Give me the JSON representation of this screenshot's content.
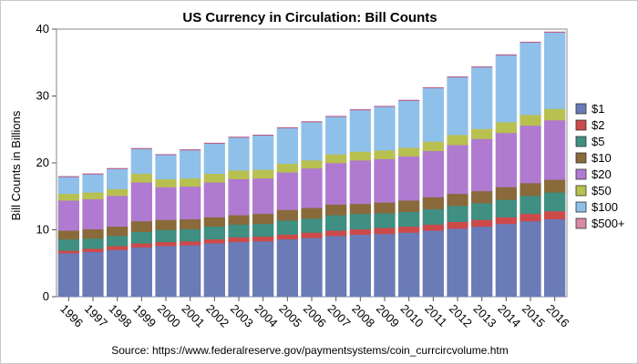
{
  "chart_data": {
    "type": "bar",
    "stacked": true,
    "title": "US Currency in Circulation: Bill Counts",
    "xlabel": "",
    "ylabel": "Bill Counts in Billions",
    "ylim": [
      0,
      40
    ],
    "yticks": [
      0,
      10,
      20,
      30,
      40
    ],
    "legend": "right",
    "grid": false,
    "source": "Source: https://www.federalreserve.gov/paymentsystems/coin_currcircvolume.htm",
    "categories": [
      "1996",
      "1997",
      "1998",
      "1999",
      "2000",
      "2001",
      "2002",
      "2003",
      "2004",
      "2005",
      "2006",
      "2007",
      "2008",
      "2009",
      "2010",
      "2011",
      "2012",
      "2013",
      "2014",
      "2015",
      "2016"
    ],
    "series": [
      {
        "name": "$1",
        "color": "#6a7bb8",
        "values": [
          6.5,
          6.7,
          7.0,
          7.4,
          7.6,
          7.7,
          8.0,
          8.2,
          8.3,
          8.6,
          8.8,
          9.1,
          9.3,
          9.4,
          9.6,
          9.9,
          10.2,
          10.5,
          10.9,
          11.3,
          11.6
        ]
      },
      {
        "name": "$2",
        "color": "#cc4a4a",
        "values": [
          0.4,
          0.5,
          0.6,
          0.6,
          0.6,
          0.6,
          0.6,
          0.7,
          0.7,
          0.7,
          0.8,
          0.8,
          0.8,
          0.9,
          0.9,
          0.9,
          1.0,
          1.0,
          1.0,
          1.1,
          1.2
        ]
      },
      {
        "name": "$5",
        "color": "#3f8f82",
        "values": [
          1.7,
          1.5,
          1.5,
          1.7,
          1.8,
          1.8,
          1.9,
          1.9,
          1.9,
          2.1,
          2.1,
          2.3,
          2.3,
          2.2,
          2.2,
          2.3,
          2.4,
          2.5,
          2.6,
          2.7,
          2.8
        ]
      },
      {
        "name": "$10",
        "color": "#8a6a3a",
        "values": [
          1.3,
          1.4,
          1.4,
          1.6,
          1.5,
          1.5,
          1.4,
          1.4,
          1.5,
          1.6,
          1.6,
          1.6,
          1.5,
          1.6,
          1.7,
          1.8,
          1.8,
          1.8,
          1.9,
          1.9,
          1.9
        ]
      },
      {
        "name": "$20",
        "color": "#b07ad0",
        "values": [
          4.5,
          4.5,
          4.6,
          5.8,
          4.9,
          4.9,
          5.2,
          5.4,
          5.3,
          5.6,
          5.9,
          6.2,
          6.5,
          6.5,
          6.6,
          6.9,
          7.3,
          7.8,
          8.1,
          8.6,
          8.9
        ]
      },
      {
        "name": "$50",
        "color": "#b8c050",
        "values": [
          1.0,
          1.0,
          1.0,
          1.3,
          1.2,
          1.2,
          1.3,
          1.3,
          1.3,
          1.3,
          1.2,
          1.3,
          1.3,
          1.3,
          1.3,
          1.4,
          1.5,
          1.5,
          1.6,
          1.6,
          1.7
        ]
      },
      {
        "name": "$100",
        "color": "#8fc0ea",
        "values": [
          2.5,
          2.7,
          3.0,
          3.7,
          3.6,
          4.2,
          4.5,
          4.9,
          5.1,
          5.3,
          5.7,
          5.6,
          6.2,
          6.5,
          7.0,
          8.0,
          8.6,
          9.2,
          10.0,
          10.8,
          11.4
        ]
      },
      {
        "name": "$500+",
        "color": "#d88aa2",
        "values": [
          0.05,
          0.05,
          0.05,
          0.05,
          0.05,
          0.05,
          0.05,
          0.05,
          0.05,
          0.05,
          0.05,
          0.05,
          0.05,
          0.05,
          0.05,
          0.05,
          0.05,
          0.05,
          0.05,
          0.05,
          0.05
        ]
      }
    ]
  }
}
